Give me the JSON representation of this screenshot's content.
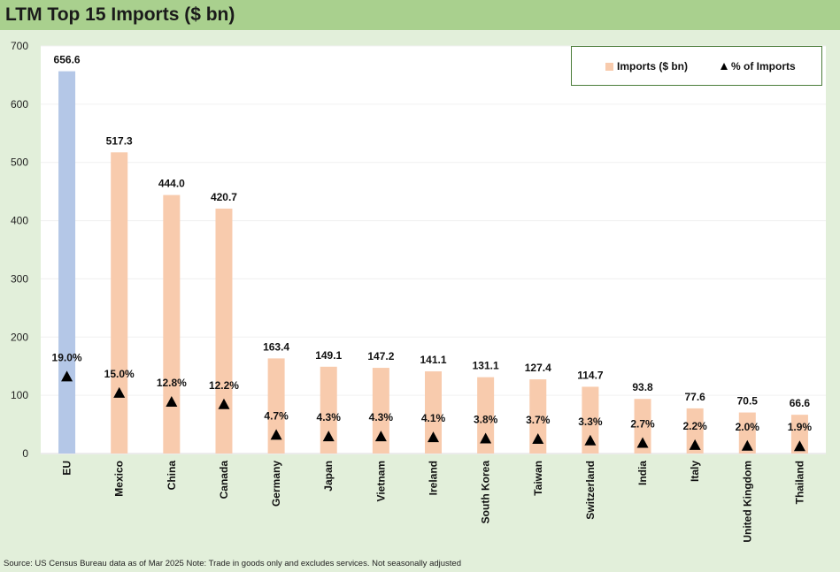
{
  "title": "LTM Top 15 Imports ($ bn)",
  "source": "Source: US Census Bureau data as of Mar 2025 Note: Trade in goods only and excludes services. Not seasonally adjusted",
  "colors": {
    "header_bg": "#a9d08e",
    "page_bg": "#e2efda",
    "bar_highlight": "#b4c7e7",
    "bar_default": "#f8cbad",
    "marker": "#000000",
    "legend_border": "#4a7c39"
  },
  "legend": {
    "imports_label": "Imports ($ bn)",
    "pct_label": "% of Imports",
    "placement": "top-right"
  },
  "chart_data": {
    "type": "bar",
    "title": "LTM Top 15 Imports ($ bn)",
    "xlabel": "",
    "ylabel": "",
    "ylim": [
      0,
      700
    ],
    "yticks": [
      0,
      100,
      200,
      300,
      400,
      500,
      600,
      700
    ],
    "grid": true,
    "categories": [
      "EU",
      "Mexico",
      "China",
      "Canada",
      "Germany",
      "Japan",
      "Vietnam",
      "Ireland",
      "South Korea",
      "Taiwan",
      "Switzerland",
      "India",
      "Italy",
      "United Kingdom",
      "Thailand"
    ],
    "series": [
      {
        "name": "Imports ($ bn)",
        "kind": "bar",
        "values": [
          656.6,
          517.3,
          444.0,
          420.7,
          163.4,
          149.1,
          147.2,
          141.1,
          131.1,
          127.4,
          114.7,
          93.8,
          77.6,
          70.5,
          66.6
        ],
        "labels": [
          "656.6",
          "517.3",
          "444.0",
          "420.7",
          "163.4",
          "149.1",
          "147.2",
          "141.1",
          "131.1",
          "127.4",
          "114.7",
          "93.8",
          "77.6",
          "70.5",
          "66.6"
        ]
      },
      {
        "name": "% of Imports",
        "kind": "marker",
        "values": [
          19.0,
          15.0,
          12.8,
          12.2,
          4.7,
          4.3,
          4.3,
          4.1,
          3.8,
          3.7,
          3.3,
          2.7,
          2.2,
          2.0,
          1.9
        ],
        "labels": [
          "19.0%",
          "15.0%",
          "12.8%",
          "12.2%",
          "4.7%",
          "4.3%",
          "4.3%",
          "4.1%",
          "3.8%",
          "3.7%",
          "3.3%",
          "2.7%",
          "2.2%",
          "2.0%",
          "1.9%"
        ],
        "marker_scale_note": "plotted on the primary axis as percent x 7"
      }
    ],
    "highlight_category": "EU"
  }
}
